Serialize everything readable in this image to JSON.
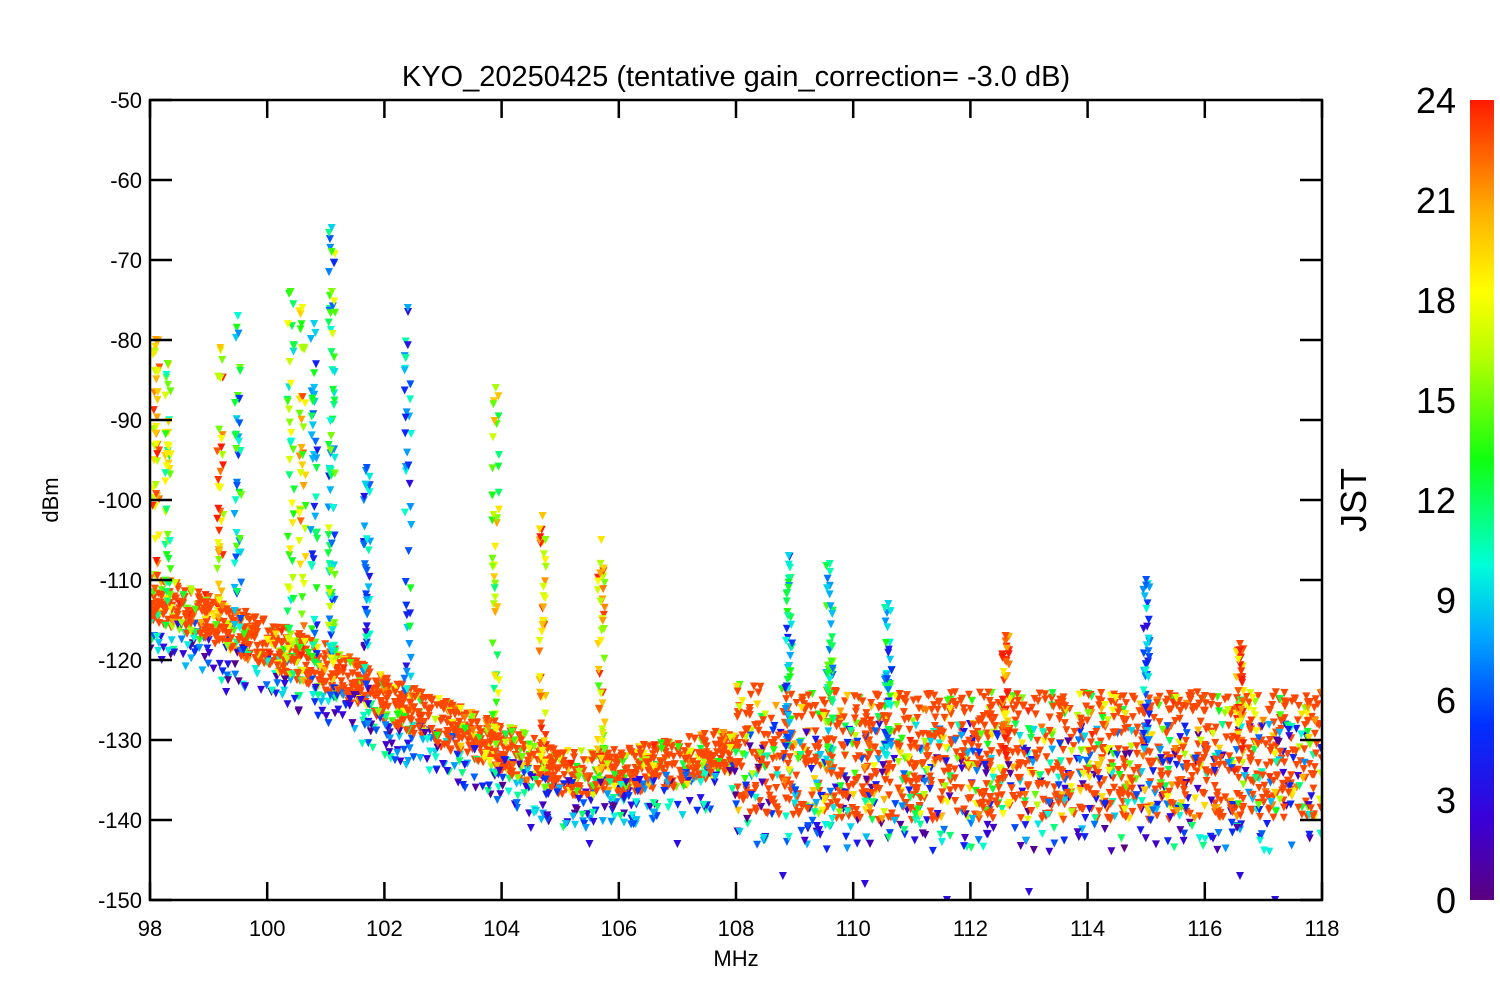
{
  "chart_data": {
    "type": "scatter",
    "title": "KYO_20250425 (tentative gain_correction= -3.0 dB)",
    "xlabel": "MHz",
    "ylabel": "dBm",
    "xlim": [
      98,
      118
    ],
    "ylim": [
      -150,
      -50
    ],
    "x_ticks": [
      "98",
      "100",
      "102",
      "104",
      "106",
      "108",
      "110",
      "112",
      "114",
      "116",
      "118"
    ],
    "y_ticks": [
      "-50",
      "-60",
      "-70",
      "-80",
      "-90",
      "-100",
      "-110",
      "-120",
      "-130",
      "-140",
      "-150"
    ],
    "colorbar": {
      "label": "JST",
      "range": [
        0,
        24
      ],
      "ticks": [
        "24",
        "21",
        "18",
        "15",
        "12",
        "9",
        "6",
        "3",
        "0"
      ],
      "colormap": "rainbow"
    },
    "grid": false,
    "marker": "triangle-down",
    "noise_floor_outline": [
      {
        "x": 98.0,
        "y": -112
      },
      {
        "x": 99.0,
        "y": -115
      },
      {
        "x": 100.0,
        "y": -118
      },
      {
        "x": 101.0,
        "y": -121
      },
      {
        "x": 102.0,
        "y": -125
      },
      {
        "x": 103.0,
        "y": -128
      },
      {
        "x": 104.0,
        "y": -131
      },
      {
        "x": 105.0,
        "y": -134
      },
      {
        "x": 106.0,
        "y": -134
      },
      {
        "x": 107.0,
        "y": -133
      },
      {
        "x": 108.0,
        "y": -131
      },
      {
        "x": 110.0,
        "y": -132
      },
      {
        "x": 112.0,
        "y": -132
      },
      {
        "x": 114.0,
        "y": -132
      },
      {
        "x": 116.0,
        "y": -132
      },
      {
        "x": 118.0,
        "y": -132
      }
    ],
    "peaks": [
      {
        "x": 98.1,
        "y": -80,
        "jst": 21
      },
      {
        "x": 98.3,
        "y": -83,
        "jst": 15
      },
      {
        "x": 99.2,
        "y": -81,
        "jst": 20
      },
      {
        "x": 99.5,
        "y": -77,
        "jst": 10
      },
      {
        "x": 100.4,
        "y": -74,
        "jst": 14
      },
      {
        "x": 100.6,
        "y": -76,
        "jst": 18
      },
      {
        "x": 100.8,
        "y": -78,
        "jst": 9
      },
      {
        "x": 101.1,
        "y": -66,
        "jst": 9
      },
      {
        "x": 101.1,
        "y": -69,
        "jst": 14
      },
      {
        "x": 101.7,
        "y": -96,
        "jst": 6
      },
      {
        "x": 102.4,
        "y": -76,
        "jst": 8
      },
      {
        "x": 103.9,
        "y": -86,
        "jst": 16
      },
      {
        "x": 104.7,
        "y": -102,
        "jst": 20
      },
      {
        "x": 105.7,
        "y": -105,
        "jst": 19
      },
      {
        "x": 108.9,
        "y": -107,
        "jst": 9
      },
      {
        "x": 109.6,
        "y": -108,
        "jst": 11
      },
      {
        "x": 110.6,
        "y": -113,
        "jst": 9
      },
      {
        "x": 112.6,
        "y": -117,
        "jst": 23
      },
      {
        "x": 115.0,
        "y": -110,
        "jst": 6
      },
      {
        "x": 116.6,
        "y": -118,
        "jst": 23
      }
    ],
    "low_outliers": [
      {
        "x": 98.2,
        "y": -120,
        "jst": 3
      },
      {
        "x": 99.3,
        "y": -124,
        "jst": 3
      },
      {
        "x": 100.3,
        "y": -123,
        "jst": 3
      },
      {
        "x": 101.6,
        "y": -125,
        "jst": 3
      },
      {
        "x": 103.0,
        "y": -133,
        "jst": 3
      },
      {
        "x": 104.5,
        "y": -141,
        "jst": 3
      },
      {
        "x": 105.5,
        "y": -143,
        "jst": 3
      },
      {
        "x": 107.0,
        "y": -143,
        "jst": 3
      },
      {
        "x": 108.8,
        "y": -147,
        "jst": 3
      },
      {
        "x": 110.2,
        "y": -148,
        "jst": 3
      },
      {
        "x": 111.6,
        "y": -150,
        "jst": 3
      },
      {
        "x": 113.0,
        "y": -149,
        "jst": 3
      },
      {
        "x": 116.6,
        "y": -147,
        "jst": 3
      },
      {
        "x": 117.2,
        "y": -150,
        "jst": 3
      }
    ]
  }
}
